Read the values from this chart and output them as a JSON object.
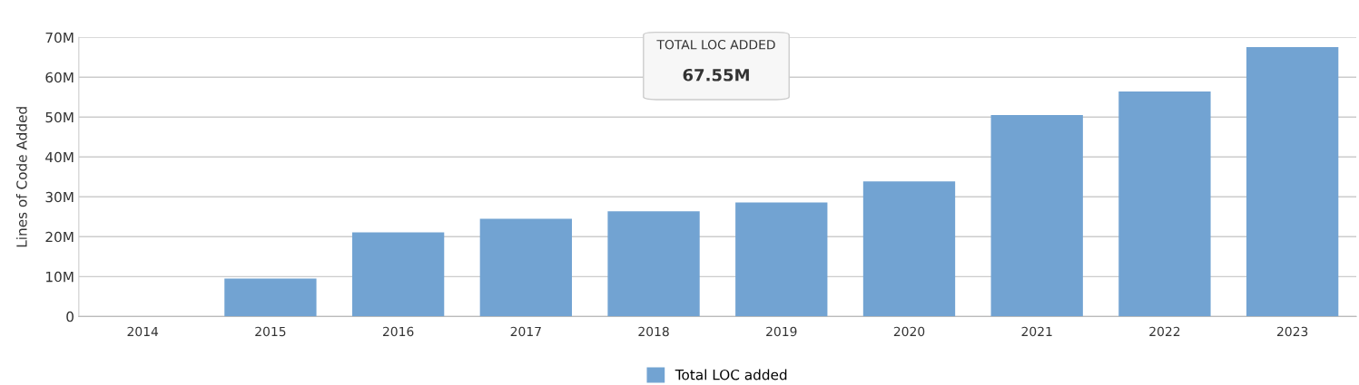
{
  "chart_data": {
    "type": "bar",
    "categories": [
      "2014",
      "2015",
      "2016",
      "2017",
      "2018",
      "2019",
      "2020",
      "2021",
      "2022",
      "2023"
    ],
    "series": [
      {
        "name": "Total LOC added",
        "color": "#72a3d2",
        "values": [
          0,
          9.5,
          21.1,
          24.5,
          26.4,
          28.6,
          33.9,
          50.5,
          56.4,
          67.55
        ]
      }
    ],
    "ylabel": "Lines of Code Added",
    "ylim": [
      0,
      70
    ],
    "yticks": [
      0,
      {
        "value": 10,
        "label": "10M"
      },
      {
        "value": 20,
        "label": "20M"
      },
      {
        "value": 30,
        "label": "30M"
      },
      {
        "value": 40,
        "label": "40M"
      },
      {
        "value": 50,
        "label": "50M"
      },
      {
        "value": 60,
        "label": "60M"
      },
      {
        "value": 70,
        "label": "70M"
      }
    ],
    "grid": "y",
    "legend": "bottom",
    "annotations": [
      "TOTAL LOC ADDED",
      "67.55M"
    ]
  }
}
